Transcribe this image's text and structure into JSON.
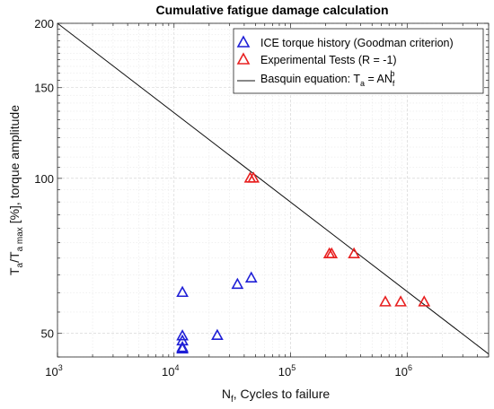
{
  "chart_data": {
    "type": "scatter",
    "title": "Cumulative fatigue damage calculation",
    "xlabel": {
      "main": "N",
      "sub": "f",
      "rest": ", Cycles to failure"
    },
    "ylabel": {
      "p1": "T",
      "s1": "a",
      "p2": "/T",
      "s2": "a max",
      "p3": " [%], torque amplitude"
    },
    "xscale": "log",
    "yscale": "log",
    "xlim": [
      1000,
      5000000
    ],
    "ylim": [
      45,
      200
    ],
    "x_ticks": [
      {
        "value": 1000,
        "base": "10",
        "exp": "3"
      },
      {
        "value": 10000,
        "base": "10",
        "exp": "4"
      },
      {
        "value": 100000,
        "base": "10",
        "exp": "5"
      },
      {
        "value": 1000000,
        "base": "10",
        "exp": "6"
      }
    ],
    "y_ticks": [
      {
        "value": 50,
        "label": "50"
      },
      {
        "value": 100,
        "label": "100"
      },
      {
        "value": 150,
        "label": "150"
      },
      {
        "value": 200,
        "label": "200"
      }
    ],
    "grid": true,
    "legend_position": "top-right",
    "series": [
      {
        "name": "ICE torque history (Goodman criterion)",
        "marker": "triangle",
        "color": "#1f1fd6",
        "points": [
          {
            "x": 11800,
            "y": 60
          },
          {
            "x": 11800,
            "y": 49.4
          },
          {
            "x": 11800,
            "y": 48.3
          },
          {
            "x": 11800,
            "y": 46.9
          },
          {
            "x": 11800,
            "y": 46.6
          },
          {
            "x": 23500,
            "y": 49.5
          },
          {
            "x": 35000,
            "y": 62.2
          },
          {
            "x": 46000,
            "y": 64
          }
        ]
      },
      {
        "name": "Experimental Tests (R = -1)",
        "marker": "triangle",
        "color": "#e82020",
        "points": [
          {
            "x": 45000,
            "y": 100
          },
          {
            "x": 48000,
            "y": 100
          },
          {
            "x": 215000,
            "y": 71.3
          },
          {
            "x": 225000,
            "y": 71.3
          },
          {
            "x": 350000,
            "y": 71.3
          },
          {
            "x": 650000,
            "y": 57.5
          },
          {
            "x": 880000,
            "y": 57.5
          },
          {
            "x": 1400000,
            "y": 57.5
          }
        ]
      }
    ],
    "fit_line": {
      "name": {
        "prefix": "Basquin equation: T",
        "sub1": "a",
        "mid": " = AN",
        "sub2": "f",
        "sup": "b"
      },
      "color": "#111111",
      "x": [
        1000,
        5000000
      ],
      "y": [
        200,
        45.6
      ]
    }
  }
}
